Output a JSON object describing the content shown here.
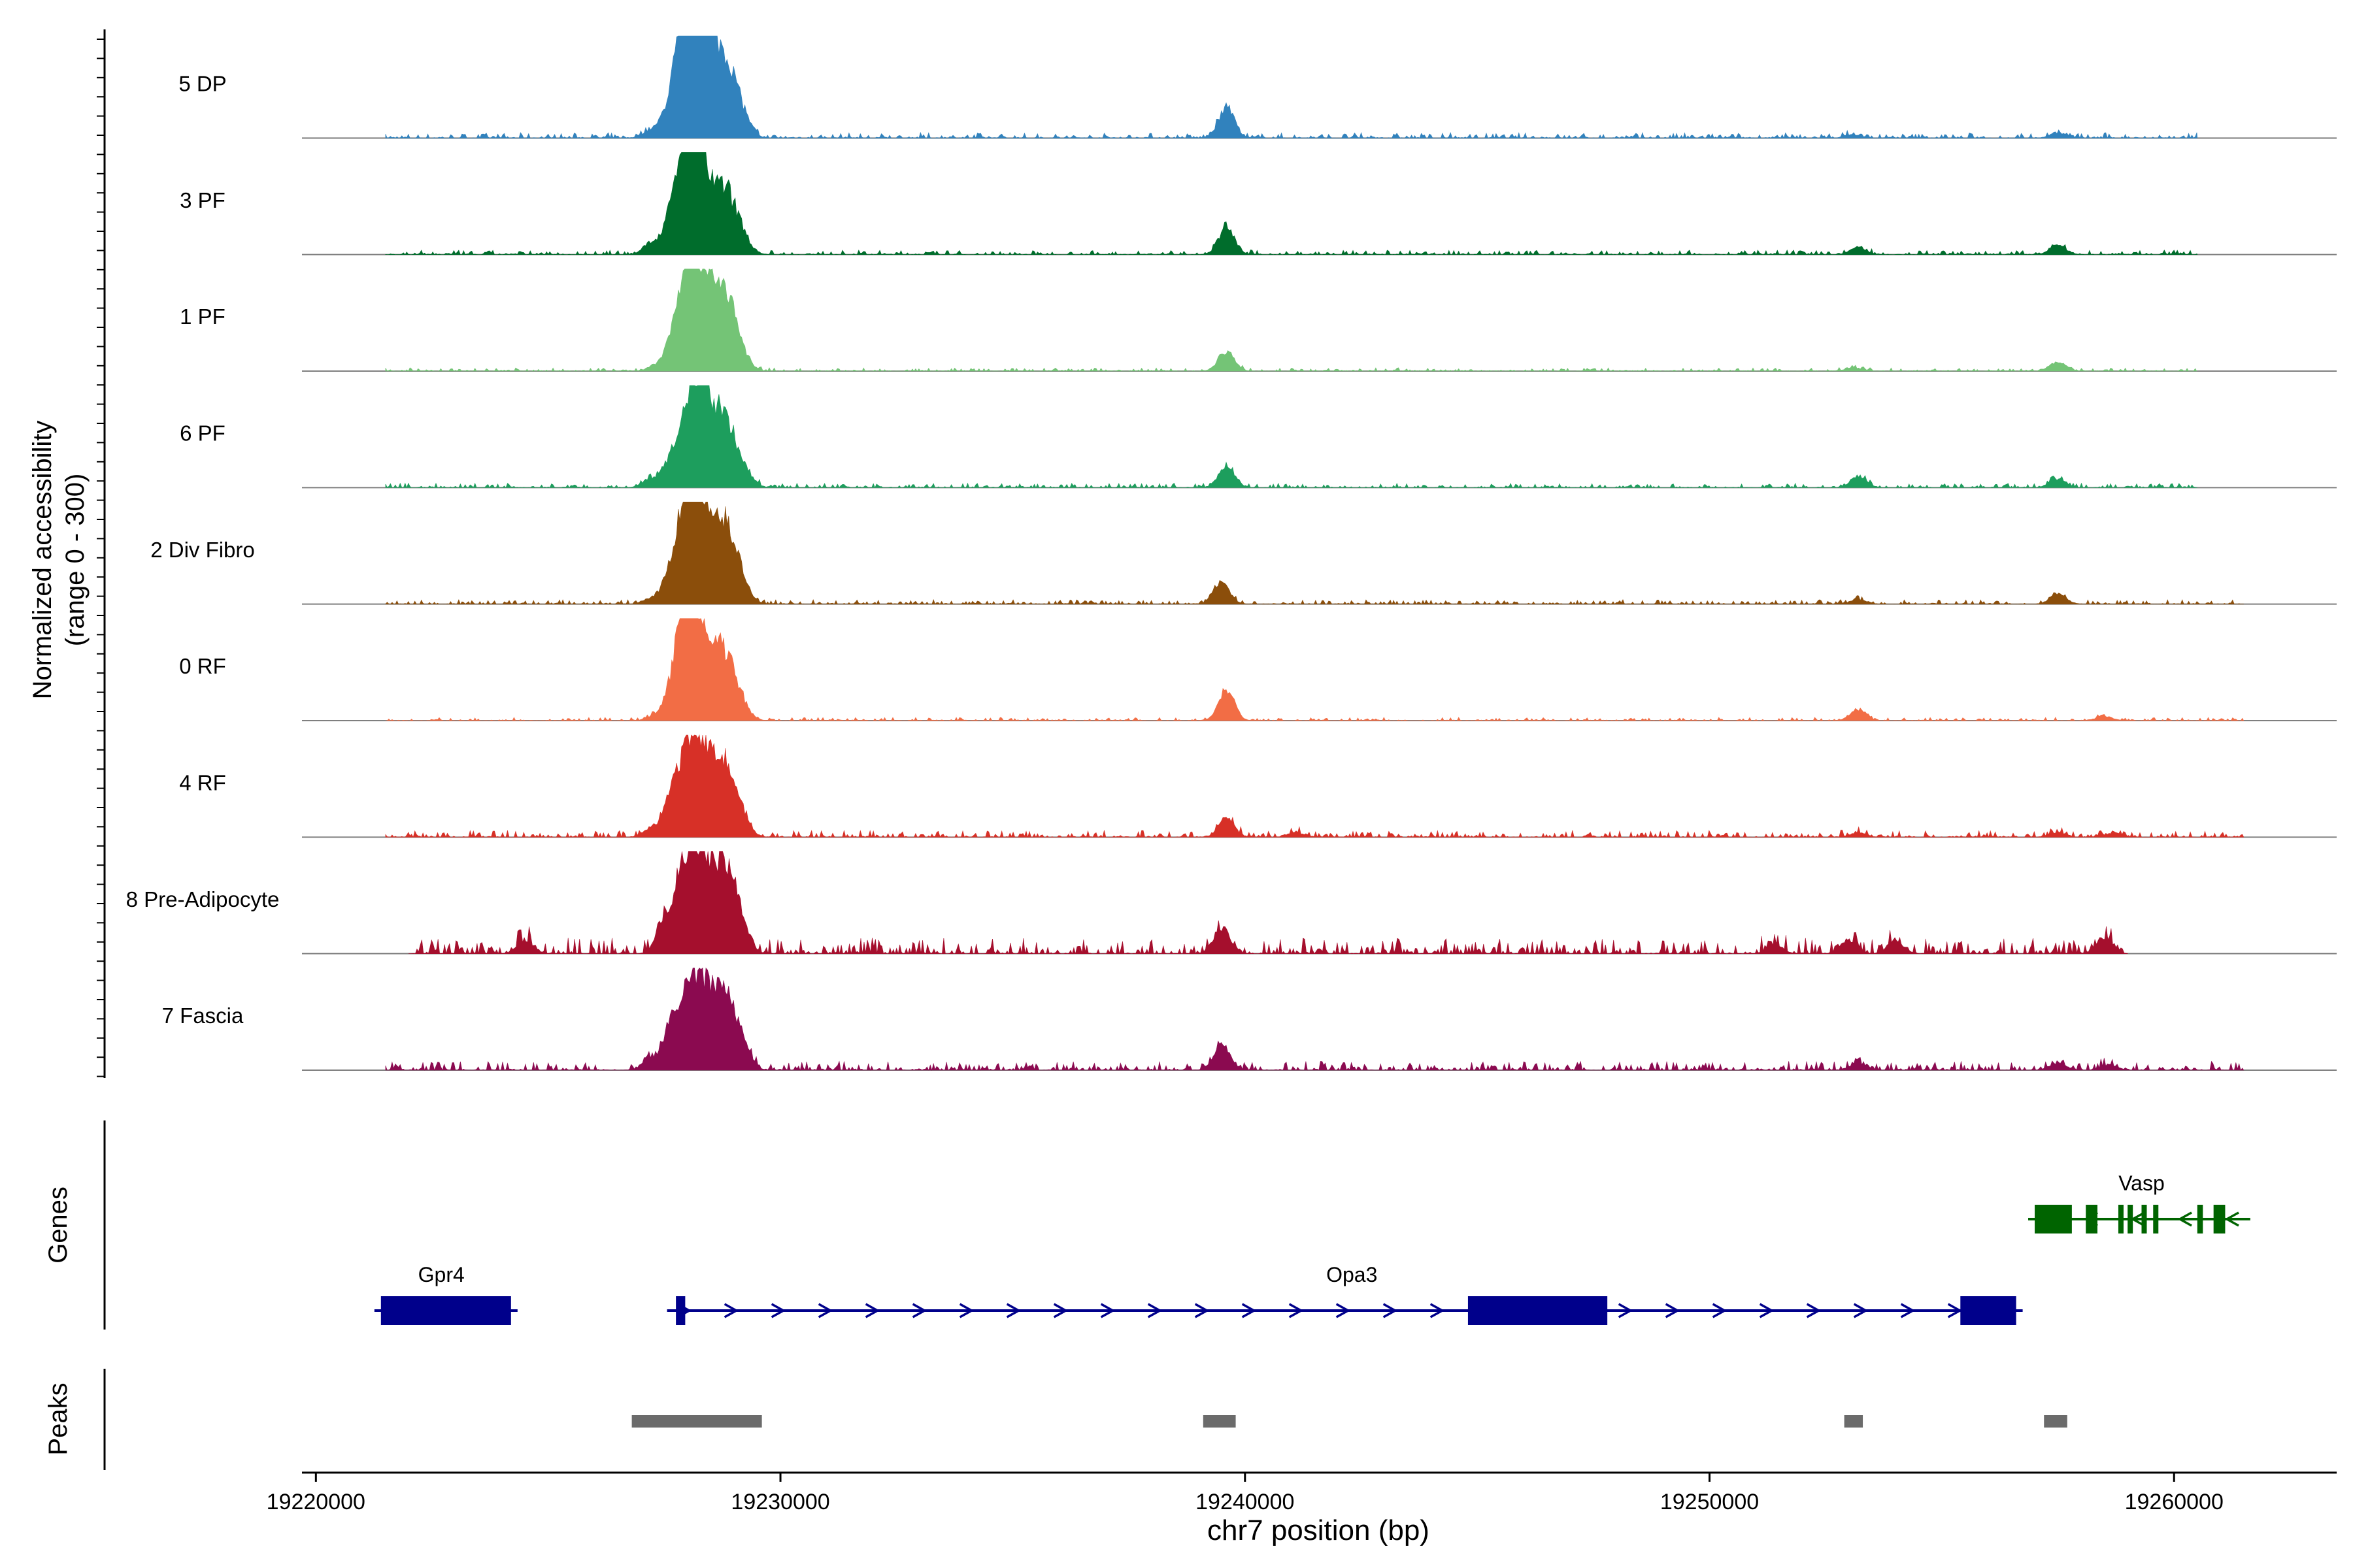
{
  "chart_data": {
    "type": "area",
    "title": "",
    "coverage": {
      "ylabel_line1": "Normalized accessibility",
      "ylabel_line2": "(range 0 - 300)",
      "ylim": [
        0,
        300
      ],
      "tracks": [
        {
          "name": "5 DP",
          "color": "#3182bd",
          "peaks": [
            [
              19227200,
              0.08
            ],
            [
              19227600,
              0.1
            ],
            [
              19227900,
              0.55
            ],
            [
              19228100,
              0.95
            ],
            [
              19228300,
              0.7
            ],
            [
              19228800,
              0.85
            ],
            [
              19229200,
              0.12
            ],
            [
              19239600,
              0.35
            ],
            [
              19253100,
              0.04
            ],
            [
              19257500,
              0.06
            ]
          ],
          "noise": 0.025,
          "span": [
            19221500,
            19260500
          ]
        },
        {
          "name": "3 PF",
          "color": "#006d2c",
          "peaks": [
            [
              19227200,
              0.12
            ],
            [
              19227600,
              0.2
            ],
            [
              19228000,
              0.9
            ],
            [
              19228200,
              0.75
            ],
            [
              19228800,
              0.7
            ],
            [
              19229200,
              0.1
            ],
            [
              19239600,
              0.3
            ],
            [
              19253200,
              0.08
            ],
            [
              19257500,
              0.1
            ]
          ],
          "noise": 0.02,
          "span": [
            19221500,
            19260500
          ]
        },
        {
          "name": "1 PF",
          "color": "#74c476",
          "peaks": [
            [
              19227300,
              0.05
            ],
            [
              19227700,
              0.12
            ],
            [
              19228000,
              0.95
            ],
            [
              19228300,
              0.7
            ],
            [
              19228800,
              0.85
            ],
            [
              19229200,
              0.05
            ],
            [
              19239600,
              0.22
            ],
            [
              19253100,
              0.04
            ],
            [
              19257500,
              0.1
            ]
          ],
          "noise": 0.015,
          "span": [
            19221500,
            19260500
          ]
        },
        {
          "name": "6 PF",
          "color": "#1d9e5d",
          "peaks": [
            [
              19227200,
              0.1
            ],
            [
              19227600,
              0.2
            ],
            [
              19228100,
              0.8
            ],
            [
              19228300,
              0.6
            ],
            [
              19228800,
              0.75
            ],
            [
              19229300,
              0.08
            ],
            [
              19239600,
              0.25
            ],
            [
              19253200,
              0.12
            ],
            [
              19257500,
              0.1
            ]
          ],
          "noise": 0.02,
          "span": [
            19221500,
            19260500
          ]
        },
        {
          "name": "2 Div Fibro",
          "color": "#8b4e0b",
          "peaks": [
            [
              19227200,
              0.06
            ],
            [
              19227600,
              0.15
            ],
            [
              19228000,
              0.85
            ],
            [
              19228200,
              0.75
            ],
            [
              19228800,
              0.9
            ],
            [
              19229200,
              0.1
            ],
            [
              19239500,
              0.25
            ],
            [
              19253200,
              0.05
            ],
            [
              19257500,
              0.12
            ]
          ],
          "noise": 0.02,
          "span": [
            19221500,
            19261500
          ]
        },
        {
          "name": "0 RF",
          "color": "#f26d45",
          "peaks": [
            [
              19227300,
              0.05
            ],
            [
              19227700,
              0.15
            ],
            [
              19228000,
              0.9
            ],
            [
              19228200,
              0.75
            ],
            [
              19228800,
              0.75
            ],
            [
              19229200,
              0.05
            ],
            [
              19239600,
              0.35
            ],
            [
              19253200,
              0.12
            ],
            [
              19258500,
              0.05
            ]
          ],
          "noise": 0.015,
          "span": [
            19221500,
            19261500
          ]
        },
        {
          "name": "4 RF",
          "color": "#d73027",
          "peaks": [
            [
              19227200,
              0.08
            ],
            [
              19227600,
              0.25
            ],
            [
              19228000,
              0.75
            ],
            [
              19228300,
              0.7
            ],
            [
              19228800,
              0.75
            ],
            [
              19229200,
              0.1
            ],
            [
              19239600,
              0.2
            ],
            [
              19241100,
              0.05
            ],
            [
              19253200,
              0.05
            ],
            [
              19257500,
              0.05
            ],
            [
              19258700,
              0.05
            ]
          ],
          "noise": 0.03,
          "span": [
            19221500,
            19261500
          ]
        },
        {
          "name": "8 Pre-Adipocyte",
          "color": "#a50f2d",
          "peaks": [
            [
              19224500,
              0.15
            ],
            [
              19227500,
              0.3
            ],
            [
              19228000,
              0.85
            ],
            [
              19228300,
              0.65
            ],
            [
              19228800,
              0.95
            ],
            [
              19229200,
              0.12
            ],
            [
              19239500,
              0.3
            ],
            [
              19251400,
              0.1
            ],
            [
              19253000,
              0.15
            ],
            [
              19254000,
              0.15
            ],
            [
              19258500,
              0.18
            ]
          ],
          "noise": 0.07,
          "span": [
            19222000,
            19259000
          ]
        },
        {
          "name": "7 Fascia",
          "color": "#8b0a50",
          "peaks": [
            [
              19227200,
              0.12
            ],
            [
              19227600,
              0.3
            ],
            [
              19228000,
              0.7
            ],
            [
              19228300,
              0.6
            ],
            [
              19228800,
              0.8
            ],
            [
              19229200,
              0.15
            ],
            [
              19239500,
              0.3
            ],
            [
              19253200,
              0.08
            ],
            [
              19257500,
              0.08
            ],
            [
              19258600,
              0.06
            ]
          ],
          "noise": 0.04,
          "span": [
            19221500,
            19261500
          ]
        }
      ]
    },
    "genes": {
      "label": "Genes",
      "items": [
        {
          "name": "Gpr4",
          "strand": "+",
          "row": 2,
          "start": 19221400,
          "end": 19224200,
          "label_pos": 19222700,
          "exons": [
            [
              19221400,
              19224200
            ]
          ]
        },
        {
          "name": "Opa3",
          "strand": "+",
          "row": 2,
          "start": 19227700,
          "end": 19256600,
          "label_pos": 19242300,
          "exons": [
            [
              19227750,
              19227950
            ],
            [
              19244800,
              19247800
            ],
            [
              19255400,
              19256600
            ]
          ]
        },
        {
          "name": "Vasp",
          "strand": "-",
          "row": 1,
          "start": 19257000,
          "end": 19261500,
          "label_pos": 19259300,
          "exons": [
            [
              19257000,
              19257800
            ],
            [
              19258100,
              19258350
            ],
            [
              19258800,
              19258870
            ],
            [
              19259000,
              19259060
            ],
            [
              19259300,
              19259360
            ],
            [
              19259550,
              19259610
            ],
            [
              19260500,
              19260620
            ],
            [
              19260850,
              19261100
            ]
          ]
        }
      ]
    },
    "peaks": {
      "label": "Peaks",
      "regions": [
        [
          19226800,
          19229600
        ],
        [
          19239100,
          19239800
        ],
        [
          19252900,
          19253300
        ],
        [
          19257200,
          19257700
        ]
      ]
    },
    "xaxis": {
      "label": "chr7 position (bp)",
      "ticks": [
        19220000,
        19230000,
        19240000,
        19250000,
        19260000
      ],
      "tick_labels": [
        "19220000",
        "19230000",
        "19240000",
        "19250000",
        "19260000"
      ],
      "xlim": [
        19219700,
        19263500
      ]
    },
    "colors": {
      "gene": "#00008b",
      "gene_minus": "#006400",
      "peak": "#6b6b6b",
      "baseline": "#7f7f7f",
      "axis": "#000000"
    }
  }
}
